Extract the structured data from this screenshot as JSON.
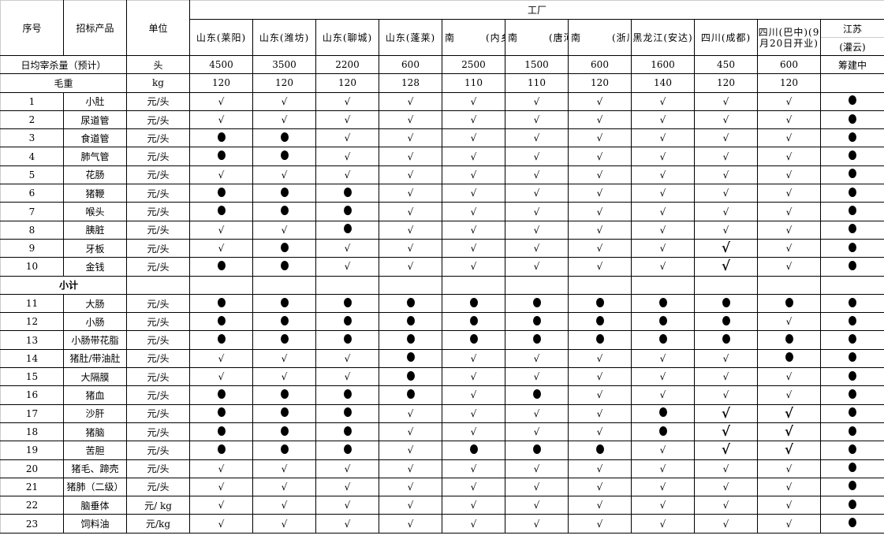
{
  "header": {
    "index": "序号",
    "product": "招标产品",
    "unit": "单位",
    "factory_group": "工厂",
    "factories": [
      "山东(莱阳)",
      "山东(潍坊)",
      "山东(聊城)",
      "山东(蓬莱)",
      "南　　　(内乡",
      "南　　　(唐河",
      "南　　　(浙川",
      "黑龙江(安达)",
      "四川(成都)",
      "四川(巴中)(9月20日开业)"
    ],
    "last_factory": {
      "line1": "江苏",
      "line2": "(灌云)"
    }
  },
  "daily_slaughter": {
    "label": "日均宰杀量（预计）",
    "unit": "头",
    "values": [
      "4500",
      "3500",
      "2200",
      "600",
      "2500",
      "1500",
      "600",
      "1600",
      "450",
      "600",
      "筹建中"
    ]
  },
  "gross_weight": {
    "label": "毛重",
    "unit": "kg",
    "values": [
      "120",
      "120",
      "120",
      "128",
      "110",
      "110",
      "120",
      "140",
      "120",
      "120",
      ""
    ]
  },
  "subtotal_label": "小计",
  "legend_symbols": {
    "check": "√",
    "dot": "●"
  },
  "rows_a": [
    {
      "no": "1",
      "name": "小肚",
      "unit": "元/头",
      "marks": "cccccccccco"
    },
    {
      "no": "2",
      "name": "尿道管",
      "unit": "元/头",
      "marks": "cccccccccco"
    },
    {
      "no": "3",
      "name": "食道管",
      "unit": "元/头",
      "marks": "oocccccccco"
    },
    {
      "no": "4",
      "name": "肺气管",
      "unit": "元/头",
      "marks": "oocccccccco"
    },
    {
      "no": "5",
      "name": "花肠",
      "unit": "元/头",
      "marks": "cccccccccco"
    },
    {
      "no": "6",
      "name": "猪鞭",
      "unit": "元/头",
      "marks": "ooocccccccо"
    },
    {
      "no": "7",
      "name": "喉头",
      "unit": "元/头",
      "marks": "ooocccccccо"
    },
    {
      "no": "8",
      "name": "胰脏",
      "unit": "元/头",
      "marks": "ccocccccccо"
    },
    {
      "no": "9",
      "name": "牙板",
      "unit": "元/头",
      "marks": "coccccccBco"
    },
    {
      "no": "10",
      "name": "金钱",
      "unit": "元/头",
      "marks": "cooccccccBco"
    }
  ],
  "rows_b": [
    {
      "no": "11",
      "name": "大肠",
      "unit": "元/头",
      "marks": "ooooooooooo"
    },
    {
      "no": "12",
      "name": "小肠",
      "unit": "元/头",
      "marks": "oooooooooco"
    },
    {
      "no": "13",
      "name": "小肠带花脂",
      "unit": "元/头",
      "marks": "ooooooooooo"
    },
    {
      "no": "14",
      "name": "猪肚/带油肚",
      "unit": "元/头",
      "marks": "cccoccccсoo"
    },
    {
      "no": "15",
      "name": "大隔膜",
      "unit": "元/头",
      "marks": "cccocccccco"
    },
    {
      "no": "16",
      "name": "猪血",
      "unit": "元/头",
      "marks": "oooococcccо"
    },
    {
      "no": "17",
      "name": "沙肝",
      "unit": "元/头",
      "marks": "ooocccc oBBo"
    },
    {
      "no": "18",
      "name": "猪脑",
      "unit": "元/头",
      "marks": "ooocccc oBBo"
    },
    {
      "no": "19",
      "name": "苦胆",
      "unit": "元/头",
      "marks": "ooocooocBBo"
    },
    {
      "no": "20",
      "name": "猪毛、蹄壳",
      "unit": "元/头",
      "marks": "cccccccccco"
    },
    {
      "no": "21",
      "name": "猪肺（二级）",
      "unit": "元/头",
      "marks": "cccccccccco"
    },
    {
      "no": "22",
      "name": "脑垂体",
      "unit": "元/ kg",
      "marks": "cccccccccco"
    },
    {
      "no": "23",
      "name": "饲料油",
      "unit": "元/kg",
      "marks": "cccccccccco"
    }
  ]
}
